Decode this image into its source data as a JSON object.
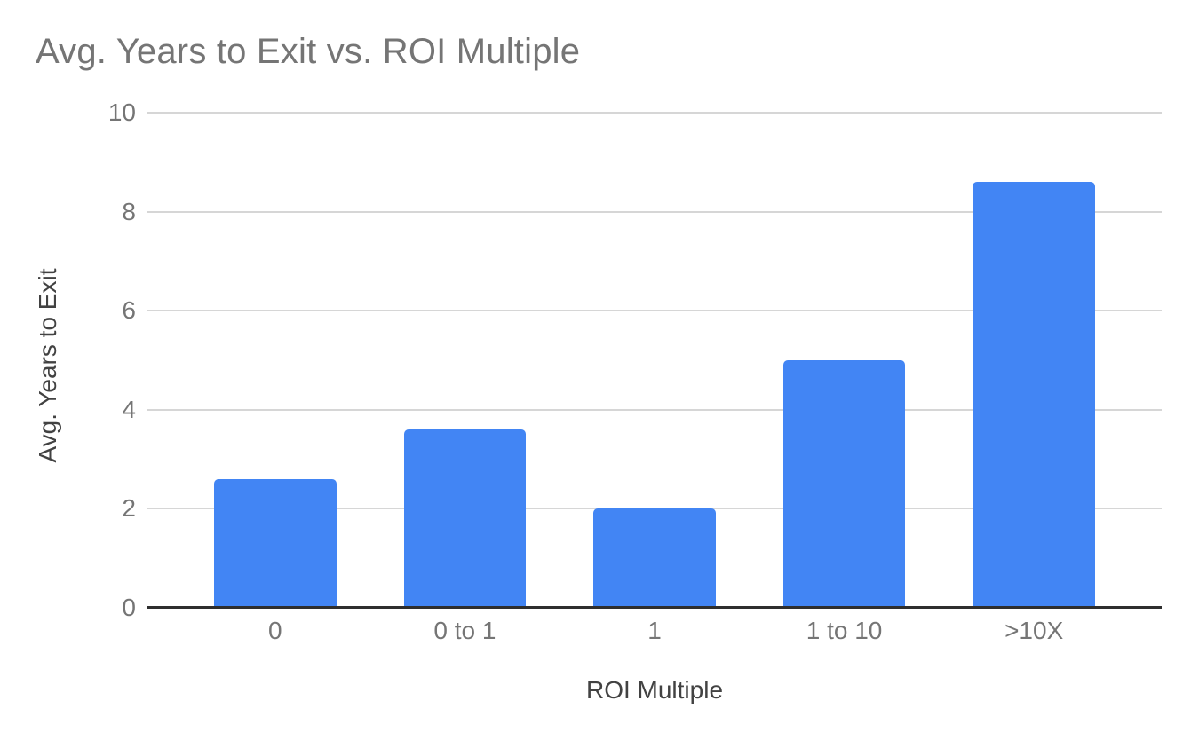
{
  "chart_data": {
    "type": "bar",
    "title": "Avg. Years to Exit vs. ROI Multiple",
    "xlabel": "ROI Multiple",
    "ylabel": "Avg. Years to Exit",
    "categories": [
      "0",
      "0 to 1",
      "1",
      "1 to 10",
      ">10X"
    ],
    "values": [
      2.6,
      3.6,
      2.0,
      5.0,
      8.6
    ],
    "ylim": [
      0,
      10
    ],
    "yticks": [
      0,
      2,
      4,
      6,
      8,
      10
    ],
    "grid": true,
    "legend": "none",
    "bar_color": "#4285f4",
    "colors": {
      "title_text": "#757575",
      "tick_text": "#757575",
      "axis_title_text": "#424242",
      "gridline": "#d6d6d6",
      "baseline": "#2e2e2e",
      "background": "#ffffff"
    }
  }
}
